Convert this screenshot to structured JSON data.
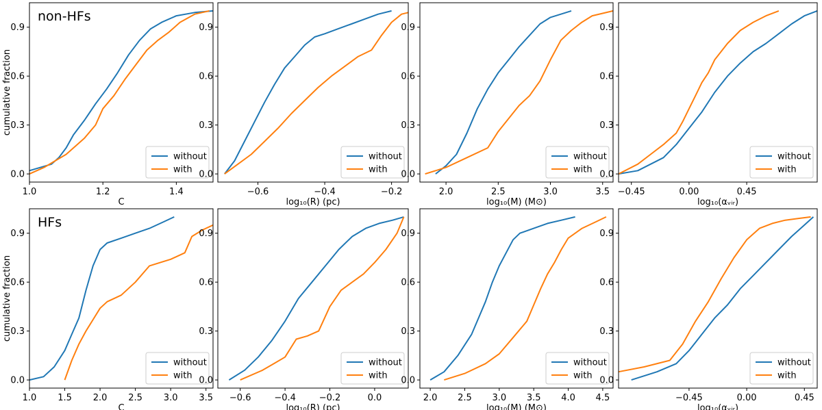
{
  "figure": {
    "ylabel": "cumulative fraction",
    "series_colors": {
      "without": "#1f77b4",
      "with": "#ff7f0e"
    }
  },
  "chart_data": [
    {
      "type": "line",
      "row_label": "non-HFs",
      "xlabel": "C",
      "ylabel": "cumulative fraction",
      "xlim": [
        1.0,
        1.5
      ],
      "ylim": [
        -0.05,
        1.05
      ],
      "xticks": [
        1.0,
        1.2,
        1.4
      ],
      "xtick_labels": [
        "1.0",
        "1.2",
        "1.4"
      ],
      "yticks": [
        0.0,
        0.3,
        0.6,
        0.9
      ],
      "ytick_labels": [
        "0.0",
        "0.3",
        "0.6",
        "0.9"
      ],
      "legend": "lower-right",
      "series": [
        {
          "name": "without",
          "x": [
            1.0,
            1.03,
            1.06,
            1.08,
            1.1,
            1.12,
            1.15,
            1.18,
            1.21,
            1.24,
            1.27,
            1.3,
            1.33,
            1.36,
            1.4,
            1.45,
            1.5
          ],
          "y": [
            0.02,
            0.04,
            0.06,
            0.1,
            0.16,
            0.24,
            0.33,
            0.43,
            0.52,
            0.62,
            0.73,
            0.82,
            0.89,
            0.93,
            0.97,
            0.99,
            1.0
          ]
        },
        {
          "name": "with",
          "x": [
            1.0,
            1.04,
            1.07,
            1.1,
            1.13,
            1.15,
            1.18,
            1.2,
            1.23,
            1.26,
            1.29,
            1.32,
            1.35,
            1.38,
            1.41,
            1.45,
            1.49
          ],
          "y": [
            0.0,
            0.04,
            0.08,
            0.12,
            0.18,
            0.22,
            0.3,
            0.4,
            0.48,
            0.58,
            0.67,
            0.76,
            0.82,
            0.87,
            0.93,
            0.98,
            1.0
          ]
        }
      ]
    },
    {
      "type": "line",
      "row_label": "",
      "xlabel": "log₁₀(R) (pc)",
      "ylabel": "",
      "xlim": [
        -0.72,
        -0.15
      ],
      "ylim": [
        -0.05,
        1.05
      ],
      "xticks": [
        -0.6,
        -0.4,
        -0.2
      ],
      "xtick_labels": [
        "−0.6",
        "−0.4",
        "−0.2"
      ],
      "yticks": [
        0.0,
        0.3,
        0.6,
        0.9
      ],
      "ytick_labels": [
        "0.0",
        "0.3",
        "0.6",
        "0.9"
      ],
      "legend": "lower-right",
      "series": [
        {
          "name": "without",
          "x": [
            -0.7,
            -0.67,
            -0.64,
            -0.61,
            -0.58,
            -0.55,
            -0.52,
            -0.49,
            -0.46,
            -0.43,
            -0.4,
            -0.36,
            -0.32,
            -0.28,
            -0.24,
            -0.2
          ],
          "y": [
            0.0,
            0.08,
            0.2,
            0.32,
            0.44,
            0.55,
            0.65,
            0.72,
            0.79,
            0.84,
            0.86,
            0.89,
            0.92,
            0.95,
            0.98,
            1.0
          ]
        },
        {
          "name": "with",
          "x": [
            -0.7,
            -0.66,
            -0.62,
            -0.58,
            -0.54,
            -0.5,
            -0.46,
            -0.42,
            -0.38,
            -0.34,
            -0.3,
            -0.26,
            -0.23,
            -0.2,
            -0.17,
            -0.15
          ],
          "y": [
            0.0,
            0.06,
            0.12,
            0.2,
            0.28,
            0.37,
            0.45,
            0.53,
            0.6,
            0.66,
            0.72,
            0.76,
            0.85,
            0.93,
            0.98,
            0.99
          ]
        }
      ]
    },
    {
      "type": "line",
      "row_label": "",
      "xlabel": "log₁₀(M) (M⊙)",
      "ylabel": "",
      "xlim": [
        1.75,
        3.6
      ],
      "ylim": [
        -0.05,
        1.05
      ],
      "xticks": [
        2.0,
        2.5,
        3.0,
        3.5
      ],
      "xtick_labels": [
        "2.0",
        "2.5",
        "3.0",
        "3.5"
      ],
      "yticks": [
        0.0,
        0.3,
        0.6,
        0.9
      ],
      "ytick_labels": [
        "0.0",
        "0.3",
        "0.6",
        "0.9"
      ],
      "legend": "lower-right",
      "series": [
        {
          "name": "without",
          "x": [
            1.9,
            2.0,
            2.1,
            2.2,
            2.3,
            2.4,
            2.5,
            2.6,
            2.7,
            2.8,
            2.9,
            3.0,
            3.1,
            3.2
          ],
          "y": [
            0.0,
            0.05,
            0.12,
            0.25,
            0.4,
            0.52,
            0.62,
            0.7,
            0.78,
            0.85,
            0.92,
            0.96,
            0.98,
            1.0
          ]
        },
        {
          "name": "with",
          "x": [
            1.8,
            2.0,
            2.2,
            2.4,
            2.5,
            2.6,
            2.7,
            2.8,
            2.9,
            3.0,
            3.1,
            3.2,
            3.3,
            3.4,
            3.6
          ],
          "y": [
            0.0,
            0.04,
            0.1,
            0.16,
            0.26,
            0.34,
            0.42,
            0.48,
            0.57,
            0.7,
            0.82,
            0.88,
            0.93,
            0.97,
            1.0
          ]
        }
      ]
    },
    {
      "type": "line",
      "row_label": "",
      "xlabel": "log₁₀(αᵥᵢᵣ)",
      "ylabel": "",
      "xlim": [
        -0.55,
        1.0
      ],
      "ylim": [
        -0.05,
        1.05
      ],
      "xticks": [
        -0.45,
        0.0,
        0.45
      ],
      "xtick_labels": [
        "−0.45",
        "0.00",
        "0.45"
      ],
      "yticks": [
        0.0,
        0.3,
        0.6,
        0.9
      ],
      "ytick_labels": [
        "0.0",
        "0.3",
        "0.6",
        "0.9"
      ],
      "legend": "lower-right",
      "series": [
        {
          "name": "without",
          "x": [
            -0.55,
            -0.4,
            -0.3,
            -0.2,
            -0.1,
            0.0,
            0.1,
            0.2,
            0.3,
            0.4,
            0.5,
            0.6,
            0.7,
            0.8,
            0.9,
            1.0
          ],
          "y": [
            0.0,
            0.02,
            0.06,
            0.1,
            0.18,
            0.28,
            0.38,
            0.5,
            0.6,
            0.68,
            0.75,
            0.8,
            0.86,
            0.92,
            0.97,
            1.0
          ]
        },
        {
          "name": "with",
          "x": [
            -0.55,
            -0.4,
            -0.3,
            -0.2,
            -0.1,
            -0.05,
            0.0,
            0.05,
            0.1,
            0.15,
            0.2,
            0.3,
            0.4,
            0.5,
            0.6,
            0.7
          ],
          "y": [
            0.0,
            0.06,
            0.12,
            0.18,
            0.25,
            0.32,
            0.4,
            0.48,
            0.56,
            0.62,
            0.7,
            0.8,
            0.88,
            0.93,
            0.97,
            1.0
          ]
        }
      ]
    },
    {
      "type": "line",
      "row_label": "HFs",
      "xlabel": "C",
      "ylabel": "cumulative fraction",
      "xlim": [
        1.0,
        3.6
      ],
      "ylim": [
        -0.05,
        1.05
      ],
      "xticks": [
        1.0,
        1.5,
        2.0,
        2.5,
        3.0,
        3.5
      ],
      "xtick_labels": [
        "1.0",
        "1.5",
        "2.0",
        "2.5",
        "3.0",
        "3.5"
      ],
      "yticks": [
        0.0,
        0.3,
        0.6,
        0.9
      ],
      "ytick_labels": [
        "0.0",
        "0.3",
        "0.6",
        "0.9"
      ],
      "legend": "lower-right",
      "series": [
        {
          "name": "without",
          "x": [
            1.0,
            1.2,
            1.35,
            1.5,
            1.6,
            1.7,
            1.8,
            1.9,
            2.0,
            2.1,
            2.3,
            2.5,
            2.7,
            2.9,
            3.05
          ],
          "y": [
            0.0,
            0.02,
            0.08,
            0.18,
            0.28,
            0.38,
            0.55,
            0.7,
            0.8,
            0.84,
            0.87,
            0.9,
            0.93,
            0.97,
            1.0
          ]
        },
        {
          "name": "with",
          "x": [
            1.5,
            1.6,
            1.7,
            1.8,
            1.9,
            2.0,
            2.1,
            2.3,
            2.5,
            2.7,
            3.0,
            3.2,
            3.3,
            3.45,
            3.6
          ],
          "y": [
            0.0,
            0.12,
            0.22,
            0.3,
            0.37,
            0.44,
            0.48,
            0.52,
            0.6,
            0.7,
            0.74,
            0.78,
            0.88,
            0.92,
            0.95
          ]
        }
      ]
    },
    {
      "type": "line",
      "row_label": "",
      "xlabel": "log₁₀(R) (pc)",
      "ylabel": "",
      "xlim": [
        -0.7,
        0.15
      ],
      "ylim": [
        -0.05,
        1.05
      ],
      "xticks": [
        -0.6,
        -0.4,
        -0.2,
        0.0
      ],
      "xtick_labels": [
        "−0.6",
        "−0.4",
        "−0.2",
        "0.0"
      ],
      "yticks": [
        0.0,
        0.3,
        0.6,
        0.9
      ],
      "ytick_labels": [
        "0.0",
        "0.3",
        "0.6",
        "0.9"
      ],
      "legend": "lower-right",
      "series": [
        {
          "name": "without",
          "x": [
            -0.65,
            -0.58,
            -0.52,
            -0.46,
            -0.4,
            -0.34,
            -0.28,
            -0.22,
            -0.16,
            -0.1,
            -0.04,
            0.02,
            0.08,
            0.13
          ],
          "y": [
            0.0,
            0.06,
            0.14,
            0.24,
            0.36,
            0.5,
            0.6,
            0.7,
            0.8,
            0.88,
            0.93,
            0.96,
            0.98,
            1.0
          ]
        },
        {
          "name": "with",
          "x": [
            -0.6,
            -0.5,
            -0.45,
            -0.4,
            -0.35,
            -0.3,
            -0.25,
            -0.2,
            -0.15,
            -0.1,
            -0.05,
            0.0,
            0.05,
            0.1,
            0.13
          ],
          "y": [
            0.0,
            0.06,
            0.1,
            0.14,
            0.25,
            0.27,
            0.3,
            0.45,
            0.55,
            0.6,
            0.65,
            0.72,
            0.8,
            0.9,
            1.0
          ]
        }
      ]
    },
    {
      "type": "line",
      "row_label": "",
      "xlabel": "log₁₀(M) (M⊙)",
      "ylabel": "",
      "xlim": [
        1.85,
        4.65
      ],
      "ylim": [
        -0.05,
        1.05
      ],
      "xticks": [
        2.0,
        2.5,
        3.0,
        3.5,
        4.0,
        4.5
      ],
      "xtick_labels": [
        "2.0",
        "2.5",
        "3.0",
        "3.5",
        "4.0",
        "4.5"
      ],
      "yticks": [
        0.0,
        0.3,
        0.6,
        0.9
      ],
      "ytick_labels": [
        "0.0",
        "0.3",
        "0.6",
        "0.9"
      ],
      "legend": "lower-right",
      "series": [
        {
          "name": "without",
          "x": [
            2.0,
            2.2,
            2.4,
            2.6,
            2.7,
            2.8,
            2.9,
            3.0,
            3.1,
            3.2,
            3.3,
            3.5,
            3.7,
            3.9,
            4.1
          ],
          "y": [
            0.0,
            0.05,
            0.15,
            0.28,
            0.38,
            0.48,
            0.6,
            0.7,
            0.78,
            0.86,
            0.9,
            0.93,
            0.96,
            0.98,
            1.0
          ]
        },
        {
          "name": "with",
          "x": [
            2.2,
            2.5,
            2.8,
            3.0,
            3.2,
            3.4,
            3.5,
            3.6,
            3.7,
            3.8,
            3.9,
            4.0,
            4.2,
            4.4,
            4.55
          ],
          "y": [
            0.0,
            0.04,
            0.1,
            0.16,
            0.26,
            0.36,
            0.46,
            0.56,
            0.65,
            0.72,
            0.8,
            0.87,
            0.93,
            0.97,
            1.0
          ]
        }
      ]
    },
    {
      "type": "line",
      "row_label": "",
      "xlabel": "log₁₀(αᵥᵢᵣ)",
      "ylabel": "",
      "xlim": [
        -1.0,
        0.55
      ],
      "ylim": [
        -0.05,
        1.05
      ],
      "xticks": [
        -0.45,
        0.0,
        0.45
      ],
      "xtick_labels": [
        "−0.45",
        "0.00",
        "0.45"
      ],
      "yticks": [
        0.0,
        0.3,
        0.6,
        0.9
      ],
      "ytick_labels": [
        "0.0",
        "0.3",
        "0.6",
        "0.9"
      ],
      "legend": "lower-right",
      "series": [
        {
          "name": "without",
          "x": [
            -0.9,
            -0.7,
            -0.55,
            -0.45,
            -0.35,
            -0.25,
            -0.15,
            -0.05,
            0.05,
            0.15,
            0.25,
            0.35,
            0.45,
            0.52
          ],
          "y": [
            0.0,
            0.05,
            0.1,
            0.18,
            0.28,
            0.38,
            0.46,
            0.56,
            0.64,
            0.72,
            0.8,
            0.88,
            0.95,
            1.0
          ]
        },
        {
          "name": "with",
          "x": [
            -1.0,
            -0.8,
            -0.6,
            -0.5,
            -0.4,
            -0.3,
            -0.2,
            -0.1,
            0.0,
            0.1,
            0.2,
            0.3,
            0.4,
            0.5
          ],
          "y": [
            0.05,
            0.08,
            0.12,
            0.22,
            0.36,
            0.48,
            0.62,
            0.75,
            0.86,
            0.93,
            0.96,
            0.98,
            0.99,
            1.0
          ]
        }
      ]
    }
  ]
}
